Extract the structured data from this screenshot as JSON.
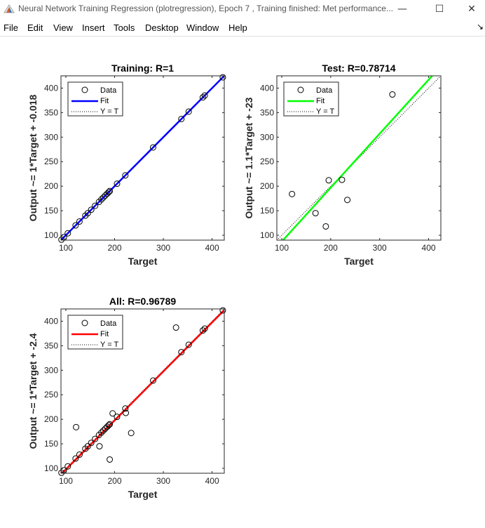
{
  "window": {
    "title": "Neural Network Training Regression (plotregression), Epoch 7 , Training finished: Met performance...",
    "minimize_glyph": "—",
    "maximize_glyph": "☐",
    "close_glyph": "✕",
    "dock_glyph": "↘"
  },
  "menu": {
    "file": "File",
    "edit": "Edit",
    "view": "View",
    "insert": "Insert",
    "tools": "Tools",
    "desktop": "Desktop",
    "window": "Window",
    "help": "Help"
  },
  "colors": {
    "data_marker": "#000000",
    "training_fit": "#0000ff",
    "test_fit": "#00ff00",
    "all_fit": "#ff0000",
    "axes": "#262626"
  },
  "chart_data": [
    {
      "type": "scatter",
      "title": "Training: R=1",
      "xlabel": "Target",
      "ylabel": "Output ~= 1*Target + -0.018",
      "xlim": [
        90,
        425
      ],
      "ylim": [
        90,
        425
      ],
      "xticks": [
        100,
        200,
        300,
        400
      ],
      "yticks": [
        100,
        150,
        200,
        250,
        300,
        350,
        400
      ],
      "grid": false,
      "legend": [
        "Data",
        "Fit",
        "Y = T"
      ],
      "legend_position": "top-left",
      "fit": {
        "slope": 1,
        "intercept": -0.018,
        "color": "#0000ff"
      },
      "points": [
        [
          91,
          91
        ],
        [
          96,
          96
        ],
        [
          104,
          104
        ],
        [
          120,
          120
        ],
        [
          128,
          128
        ],
        [
          140,
          140
        ],
        [
          145,
          145
        ],
        [
          152,
          152
        ],
        [
          160,
          160
        ],
        [
          168,
          168
        ],
        [
          173,
          173
        ],
        [
          177,
          177
        ],
        [
          181,
          181
        ],
        [
          185,
          185
        ],
        [
          188,
          188
        ],
        [
          190,
          190
        ],
        [
          205,
          205
        ],
        [
          222,
          222
        ],
        [
          279,
          279
        ],
        [
          337,
          337
        ],
        [
          352,
          352
        ],
        [
          381,
          381
        ],
        [
          385,
          385
        ],
        [
          422,
          422
        ]
      ]
    },
    {
      "type": "scatter",
      "title": "Test: R=0.78714",
      "xlabel": "Target",
      "ylabel": "Output ~= 1.1*Target + -23",
      "xlim": [
        90,
        425
      ],
      "ylim": [
        90,
        425
      ],
      "xticks": [
        100,
        200,
        300,
        400
      ],
      "yticks": [
        100,
        150,
        200,
        250,
        300,
        350,
        400
      ],
      "grid": false,
      "legend": [
        "Data",
        "Fit",
        "Y = T"
      ],
      "legend_position": "top-left",
      "fit": {
        "slope": 1.1,
        "intercept": -23,
        "color": "#00ff00"
      },
      "points": [
        [
          121,
          184
        ],
        [
          169,
          145
        ],
        [
          190,
          118
        ],
        [
          196,
          212
        ],
        [
          223,
          213
        ],
        [
          234,
          172
        ],
        [
          326,
          387
        ]
      ]
    },
    {
      "type": "scatter",
      "title": "All: R=0.96789",
      "xlabel": "Target",
      "ylabel": "Output ~= 1*Target + -2.4",
      "xlim": [
        90,
        425
      ],
      "ylim": [
        90,
        425
      ],
      "xticks": [
        100,
        200,
        300,
        400
      ],
      "yticks": [
        100,
        150,
        200,
        250,
        300,
        350,
        400
      ],
      "grid": false,
      "legend": [
        "Data",
        "Fit",
        "Y = T"
      ],
      "legend_position": "top-left",
      "fit": {
        "slope": 1,
        "intercept": -2.4,
        "color": "#ff0000"
      },
      "points": [
        [
          91,
          91
        ],
        [
          96,
          96
        ],
        [
          104,
          104
        ],
        [
          120,
          120
        ],
        [
          128,
          128
        ],
        [
          140,
          140
        ],
        [
          145,
          145
        ],
        [
          152,
          152
        ],
        [
          160,
          160
        ],
        [
          168,
          168
        ],
        [
          173,
          173
        ],
        [
          177,
          177
        ],
        [
          181,
          181
        ],
        [
          185,
          185
        ],
        [
          188,
          188
        ],
        [
          190,
          190
        ],
        [
          205,
          205
        ],
        [
          222,
          222
        ],
        [
          279,
          279
        ],
        [
          337,
          337
        ],
        [
          352,
          352
        ],
        [
          381,
          381
        ],
        [
          385,
          385
        ],
        [
          422,
          422
        ],
        [
          121,
          184
        ],
        [
          169,
          145
        ],
        [
          190,
          118
        ],
        [
          196,
          212
        ],
        [
          223,
          213
        ],
        [
          234,
          172
        ],
        [
          326,
          387
        ]
      ]
    }
  ]
}
